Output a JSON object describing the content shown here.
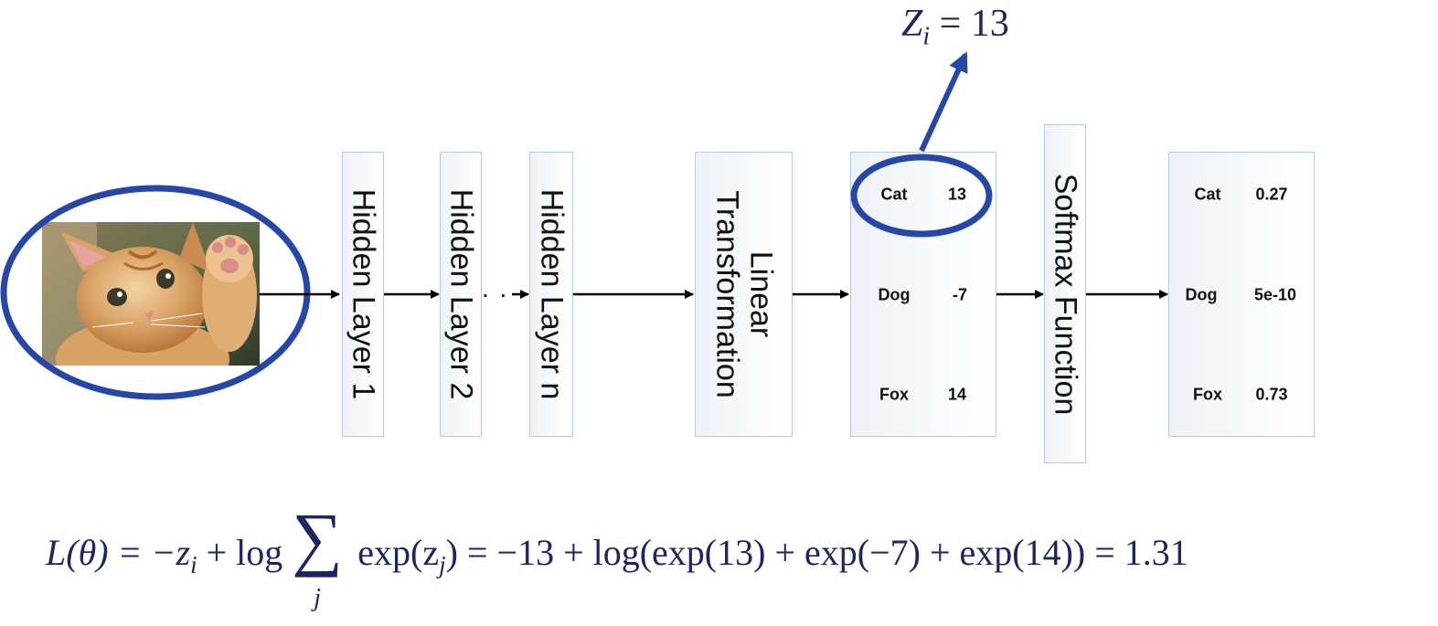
{
  "layers": {
    "hidden1": "Hidden Layer 1",
    "hidden2": "Hidden Layer 2",
    "dots": ". .",
    "hiddenN": "Hidden Layer n",
    "linear_line1": "Linear",
    "linear_line2": "Transformation",
    "softmax": "Softmax Function"
  },
  "logits": [
    {
      "label": "Cat",
      "value": "13"
    },
    {
      "label": "Dog",
      "value": "-7"
    },
    {
      "label": "Fox",
      "value": "14"
    }
  ],
  "probabilities": [
    {
      "label": "Cat",
      "value": "0.27"
    },
    {
      "label": "Dog",
      "value": "5e-10"
    },
    {
      "label": "Fox",
      "value": "0.73"
    }
  ],
  "callout": {
    "z_var": "Z",
    "z_sub": "i",
    "z_rest": " = 13"
  },
  "loss": {
    "lhs": "L(θ) = −z",
    "lhs_sub": "i",
    "plus_log": " + log",
    "sum_symbol": "∑",
    "sum_index": "j",
    "exp_open": " exp(z",
    "exp_sub": "j",
    "rhs": ") =  −13 + log(exp(13) + exp(−7) + exp(14)) = 1.31"
  },
  "colors": {
    "highlight": "#2747a8",
    "math": "#1e2560",
    "box_border": "#b9c9dd",
    "arrow": "#000000"
  },
  "icons": {
    "input_image": "kitten-photo"
  }
}
